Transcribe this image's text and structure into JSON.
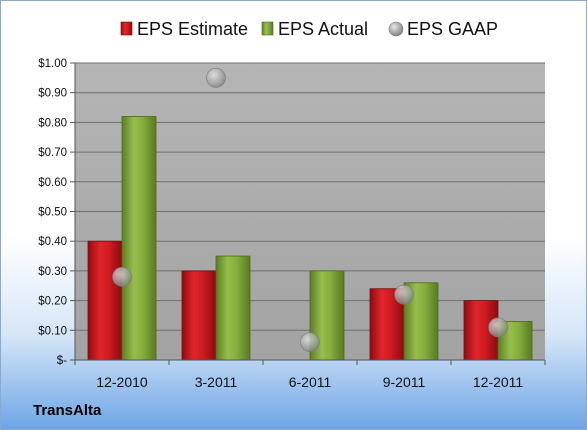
{
  "company": "TransAlta",
  "colors": {
    "estimate": "#c8141b",
    "actual": "#7fa437",
    "gaap": "#a8a8a8",
    "plot_background": "#a9a9a9"
  },
  "chart_data": {
    "type": "bar",
    "categories": [
      "12-2010",
      "3-2011",
      "6-2011",
      "9-2011",
      "12-2011"
    ],
    "series": [
      {
        "name": "EPS Estimate",
        "type": "bar",
        "values": [
          0.4,
          0.3,
          null,
          0.24,
          0.2
        ]
      },
      {
        "name": "EPS Actual",
        "type": "bar",
        "values": [
          0.82,
          0.35,
          0.3,
          0.26,
          0.13
        ]
      },
      {
        "name": "EPS GAAP",
        "type": "scatter",
        "values": [
          0.28,
          0.95,
          0.06,
          0.22,
          0.11
        ]
      }
    ],
    "ylim": [
      0,
      1.0
    ],
    "yticks": [
      0,
      0.1,
      0.2,
      0.3,
      0.4,
      0.5,
      0.6,
      0.7,
      0.8,
      0.9,
      1.0
    ],
    "ytick_labels": [
      "$-",
      "$0.10",
      "$0.20",
      "$0.30",
      "$0.40",
      "$0.50",
      "$0.60",
      "$0.70",
      "$0.80",
      "$0.90",
      "$1.00"
    ],
    "grid": true,
    "legend_position": "top"
  }
}
